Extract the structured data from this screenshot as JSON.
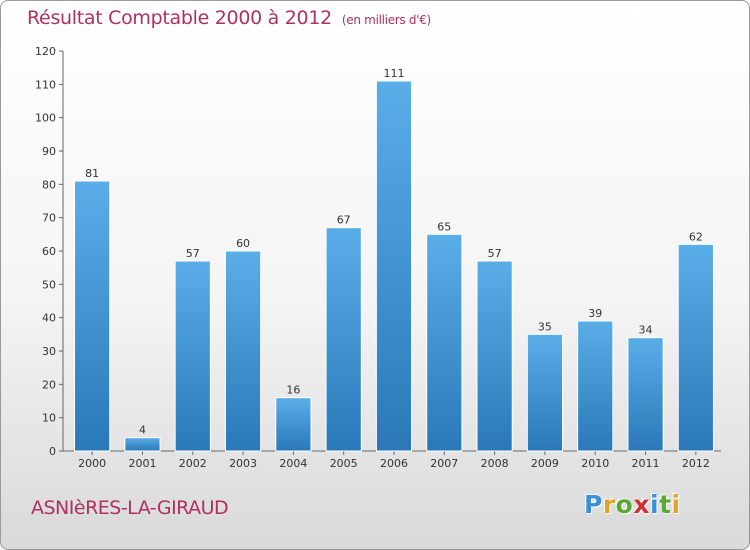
{
  "header": {
    "title": "Résultat Comptable 2000 à 2012",
    "subtitle": "(en milliers d'€)"
  },
  "footer": {
    "town": "ASNIèRES-LA-GIRAUD",
    "logo_letters": [
      {
        "char": "P",
        "color": "#3a8fd6"
      },
      {
        "char": "r",
        "color": "#e8a020"
      },
      {
        "char": "o",
        "color": "#5aaa30"
      },
      {
        "char": "x",
        "color": "#d03030"
      },
      {
        "char": "i",
        "color": "#3a8fd6"
      },
      {
        "char": "t",
        "color": "#5aaa30"
      },
      {
        "char": "i",
        "color": "#e8a020"
      }
    ]
  },
  "chart_data": {
    "type": "bar",
    "title": "Résultat Comptable 2000 à 2012",
    "subtitle": "(en milliers d'€)",
    "categories": [
      "2000",
      "2001",
      "2002",
      "2003",
      "2004",
      "2005",
      "2006",
      "2007",
      "2008",
      "2009",
      "2010",
      "2011",
      "2012"
    ],
    "values": [
      81,
      4,
      57,
      60,
      16,
      67,
      111,
      65,
      57,
      35,
      39,
      34,
      62
    ],
    "ylim": [
      0,
      120
    ],
    "yticks": [
      0,
      10,
      20,
      30,
      40,
      50,
      60,
      70,
      80,
      90,
      100,
      110,
      120
    ],
    "grid": false,
    "legend": "none",
    "bar_color_top": "#5aaee8",
    "bar_color_bottom": "#2a78b8"
  }
}
